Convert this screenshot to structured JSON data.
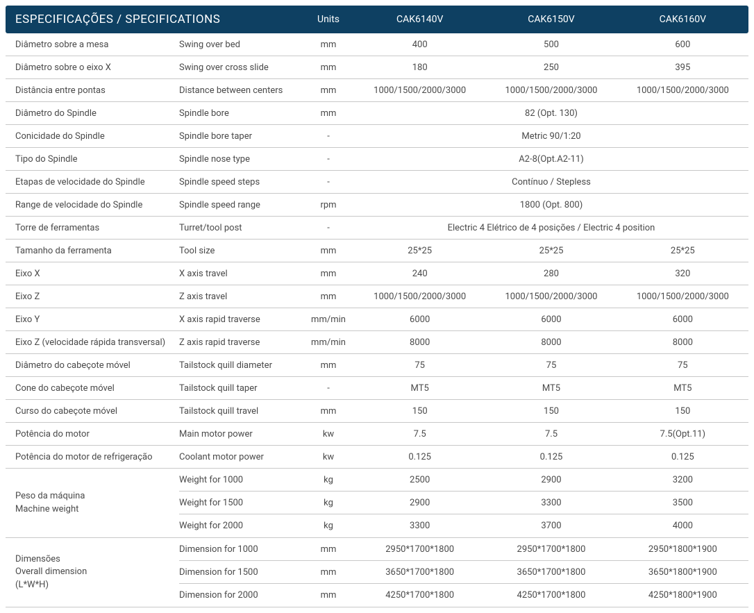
{
  "header": {
    "title": "ESPECIFICAÇÕES / SPECIFICATIONS",
    "units": "Units",
    "models": [
      "CAK6140V",
      "CAK6150V",
      "CAK6160V"
    ]
  },
  "rows": [
    {
      "pt": "Diâmetro sobre a mesa",
      "en": "Swing over bed",
      "unit": "mm",
      "vals": [
        "400",
        "500",
        "600"
      ]
    },
    {
      "pt": "Diâmetro sobre o eixo X",
      "en": "Swing over cross slide",
      "unit": "mm",
      "vals": [
        "180",
        "250",
        "395"
      ]
    },
    {
      "pt": "Distância entre pontas",
      "en": "Distance between centers",
      "unit": "mm",
      "vals": [
        "1000/1500/2000/3000",
        "1000/1500/2000/3000",
        "1000/1500/2000/3000"
      ]
    },
    {
      "pt": "Diâmetro do Spindle",
      "en": "Spindle bore",
      "unit": "mm",
      "merged": "82 (Opt. 130)"
    },
    {
      "pt": "Conicidade do Spindle",
      "en": "Spindle bore taper",
      "unit": "-",
      "merged": "Metric 90/1:20"
    },
    {
      "pt": "Tipo do Spindle",
      "en": "Spindle nose type",
      "unit": "-",
      "merged": "A2-8(Opt.A2-11)"
    },
    {
      "pt": "Etapas de velocidade do Spindle",
      "en": "Spindle speed steps",
      "unit": "-",
      "merged": "Contínuo / Stepless"
    },
    {
      "pt": "Range de velocidade do Spindle",
      "en": "Spindle speed range",
      "unit": "rpm",
      "merged": "1800 (Opt. 800)"
    },
    {
      "pt": "Torre de ferramentas",
      "en": "Turret/tool post",
      "unit": "-",
      "merged": "Electric 4 Elétrico de 4 posições / Electric 4 position"
    },
    {
      "pt": "Tamanho da ferramenta",
      "en": "Tool size",
      "unit": "mm",
      "vals": [
        "25*25",
        "25*25",
        "25*25"
      ]
    },
    {
      "pt": "Eixo X",
      "en": "X axis travel",
      "unit": "mm",
      "vals": [
        "240",
        "280",
        "320"
      ]
    },
    {
      "pt": "Eixo Z",
      "en": "Z axis travel",
      "unit": "mm",
      "vals": [
        "1000/1500/2000/3000",
        "1000/1500/2000/3000",
        "1000/1500/2000/3000"
      ]
    },
    {
      "pt": "Eixo Y",
      "en": "X axis rapid traverse",
      "unit": "mm/min",
      "vals": [
        "6000",
        "6000",
        "6000"
      ]
    },
    {
      "pt": "Eixo Z (velocidade rápida transversal)",
      "en": "Z axis rapid traverse",
      "unit": "mm/min",
      "vals": [
        "8000",
        "8000",
        "8000"
      ]
    },
    {
      "pt": "Diâmetro do cabeçote móvel",
      "en": "Tailstock quill diameter",
      "unit": "mm",
      "vals": [
        "75",
        "75",
        "75"
      ]
    },
    {
      "pt": "Cone do cabeçote móvel",
      "en": "Tailstock quill taper",
      "unit": "-",
      "vals": [
        "MT5",
        "MT5",
        "MT5"
      ]
    },
    {
      "pt": "Curso do cabeçote móvel",
      "en": "Tailstock quill travel",
      "unit": "mm",
      "vals": [
        "150",
        "150",
        "150"
      ]
    },
    {
      "pt": "Potência do motor",
      "en": "Main motor power",
      "unit": "kw",
      "vals": [
        "7.5",
        "7.5",
        "7.5(Opt.11)"
      ]
    },
    {
      "pt": "Potência do motor de refrigeração",
      "en": "Coolant motor power",
      "unit": "kw",
      "vals": [
        "0.125",
        "0.125",
        "0.125"
      ]
    }
  ],
  "groups": [
    {
      "label_pt": "Peso da máquina",
      "label_en": "Machine weight",
      "subs": [
        {
          "en": "Weight for 1000",
          "unit": "kg",
          "vals": [
            "2500",
            "2900",
            "3200"
          ]
        },
        {
          "en": "Weight for 1500",
          "unit": "kg",
          "vals": [
            "2900",
            "3300",
            "3500"
          ]
        },
        {
          "en": "Weight for 2000",
          "unit": "kg",
          "vals": [
            "3300",
            "3700",
            "4000"
          ]
        }
      ]
    },
    {
      "label_pt": "Dimensões",
      "label_en": "Overall dimension",
      "label_extra": "(L*W*H)",
      "subs": [
        {
          "en": "Dimension for 1000",
          "unit": "mm",
          "vals": [
            "2950*1700*1800",
            "2950*1700*1800",
            "2950*1800*1900"
          ]
        },
        {
          "en": "Dimension for 1500",
          "unit": "mm",
          "vals": [
            "3650*1700*1800",
            "3650*1700*1800",
            "3650*1800*1900"
          ]
        },
        {
          "en": "Dimension for 2000",
          "unit": "mm",
          "vals": [
            "4250*1700*1800",
            "4250*1700*1800",
            "4250*1800*1900"
          ]
        }
      ]
    }
  ],
  "colors": {
    "header_bg": "#0e4062",
    "header_text": "#ffffff",
    "body_text": "#4a4a4a",
    "border": "#c8c8c8",
    "background": "#ffffff"
  }
}
